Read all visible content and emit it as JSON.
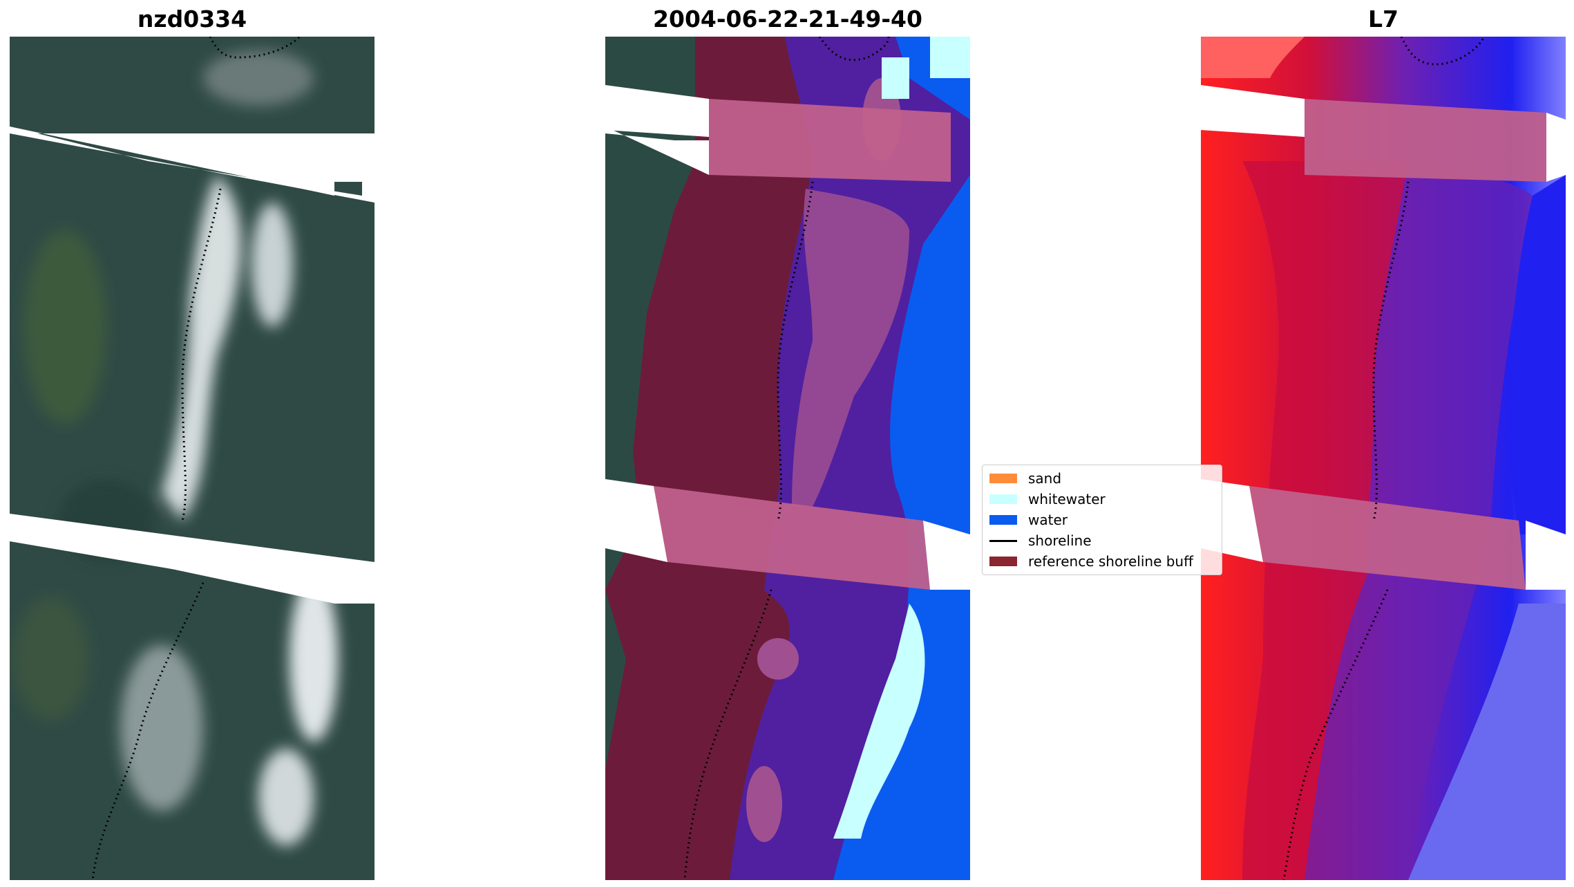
{
  "panels": [
    {
      "title": "nzd0334"
    },
    {
      "title": "2004-06-22-21-49-40"
    },
    {
      "title": "L7"
    }
  ],
  "legend": {
    "items": [
      {
        "label": "sand",
        "color": "#ff8c3a",
        "kind": "patch"
      },
      {
        "label": "whitewater",
        "color": "#c8ffff",
        "kind": "patch"
      },
      {
        "label": "water",
        "color": "#0a5cf0",
        "kind": "patch"
      },
      {
        "label": "shoreline",
        "color": "#000000",
        "kind": "line"
      },
      {
        "label": "reference shoreline buff",
        "color": "#8b2530",
        "kind": "patch"
      }
    ]
  },
  "colors": {
    "sand_band": "#c0608c",
    "land_dark": "#6c1c3a",
    "whitewater": "#c8ffff",
    "water": "#0a5cf0",
    "land_rgb": "#2c4a44",
    "surf_rgb": "#c8d0d0"
  }
}
